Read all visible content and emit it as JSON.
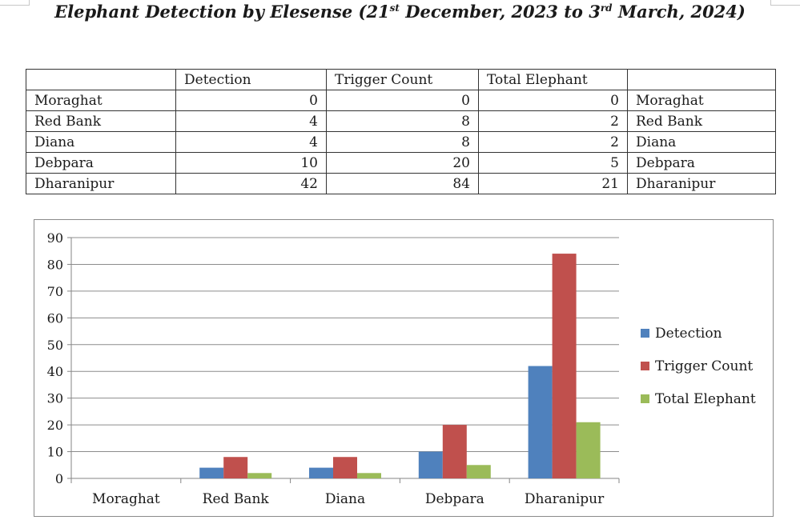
{
  "title": {
    "part1": "Elephant Detection by Elesense (21",
    "sup1": "st",
    "part2": " December, 2023 to 3",
    "sup2": "rd",
    "part3": " March, 2024)"
  },
  "table": {
    "headers": [
      "",
      "Detection",
      "Trigger Count",
      "Total Elephant",
      ""
    ],
    "rows": [
      {
        "name": "Moraghat",
        "detection": "0",
        "trigger": "0",
        "total": "0",
        "name2": "Moraghat"
      },
      {
        "name": "Red Bank",
        "detection": "4",
        "trigger": "8",
        "total": "2",
        "name2": "Red Bank"
      },
      {
        "name": "Diana",
        "detection": "4",
        "trigger": "8",
        "total": "2",
        "name2": "Diana"
      },
      {
        "name": "Debpara",
        "detection": "10",
        "trigger": "20",
        "total": "5",
        "name2": "Debpara"
      },
      {
        "name": "Dharanipur",
        "detection": "42",
        "trigger": "84",
        "total": "21",
        "name2": "Dharanipur"
      }
    ]
  },
  "chart_data": {
    "type": "bar",
    "categories": [
      "Moraghat",
      "Red Bank",
      "Diana",
      "Debpara",
      "Dharanipur"
    ],
    "series": [
      {
        "name": "Detection",
        "color": "#4f81bd",
        "values": [
          0,
          4,
          4,
          10,
          42
        ]
      },
      {
        "name": "Trigger Count",
        "color": "#c0504d",
        "values": [
          0,
          8,
          8,
          20,
          84
        ]
      },
      {
        "name": "Total Elephant",
        "color": "#9bbb59",
        "values": [
          0,
          2,
          2,
          5,
          21
        ]
      }
    ],
    "ylim": [
      0,
      90
    ],
    "yticks": [
      0,
      10,
      20,
      30,
      40,
      50,
      60,
      70,
      80,
      90
    ],
    "grid": true,
    "legend": "right"
  }
}
